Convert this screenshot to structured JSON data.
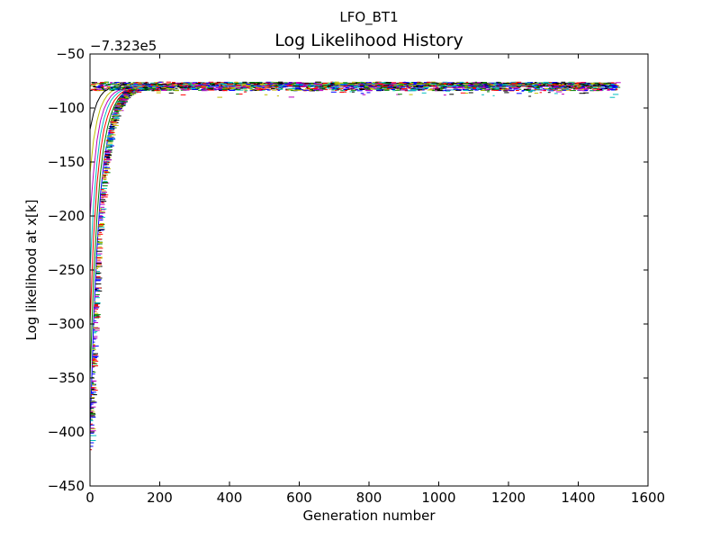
{
  "chart_data": {
    "type": "line",
    "suptitle": "LFO_BT1",
    "title": "Log Likelihood History",
    "xlabel": "Generation number",
    "ylabel": "Log likelihood at x[k]",
    "y_offset_label": "−7.323e5",
    "xlim": [
      0,
      1600
    ],
    "ylim": [
      -450,
      -50
    ],
    "xticks": [
      0,
      200,
      400,
      600,
      800,
      1000,
      1200,
      1400,
      1600
    ],
    "xtick_labels": [
      "0",
      "200",
      "400",
      "600",
      "800",
      "1000",
      "1200",
      "1400",
      "1600"
    ],
    "yticks": [
      -450,
      -400,
      -350,
      -300,
      -250,
      -200,
      -150,
      -100,
      -50
    ],
    "ytick_labels": [
      "−450",
      "−400",
      "−350",
      "−300",
      "−250",
      "−200",
      "−150",
      "−100",
      "−50"
    ],
    "grid": false,
    "x_max_data": 1510,
    "plateau_approx": -80,
    "series_colors": [
      "#0000ff",
      "#008000",
      "#ff0000",
      "#00bfbf",
      "#bf00bf",
      "#bfbf00",
      "#000000"
    ],
    "series": [
      {
        "x": [
          0,
          10,
          20,
          30,
          40,
          50,
          60,
          70,
          80,
          90,
          100,
          120,
          140,
          160,
          180,
          200,
          250,
          300,
          400,
          600,
          800,
          1000,
          1200,
          1400,
          1510
        ],
        "y": [
          -402,
          -300,
          -230,
          -180,
          -150,
          -130,
          -115,
          -105,
          -98,
          -93,
          -90,
          -86,
          -84,
          -83,
          -82,
          -81,
          -80,
          -80,
          -80,
          -80,
          -80,
          -80,
          -80,
          -80,
          -80
        ]
      },
      {
        "x": [
          0,
          10,
          20,
          30,
          40,
          50,
          60,
          70,
          80,
          90,
          100,
          120,
          140,
          160,
          180,
          200,
          250,
          300,
          400,
          600,
          800,
          1000,
          1200,
          1400,
          1510
        ],
        "y": [
          -350,
          -260,
          -200,
          -160,
          -135,
          -118,
          -106,
          -98,
          -92,
          -88,
          -86,
          -84,
          -83,
          -82,
          -81,
          -80,
          -79,
          -79,
          -79,
          -79,
          -79,
          -79,
          -79,
          -79,
          -79
        ]
      },
      {
        "x": [
          0,
          10,
          20,
          30,
          40,
          50,
          60,
          70,
          80,
          90,
          100,
          120,
          140,
          160,
          180,
          200,
          250,
          300,
          400,
          600,
          800,
          1000,
          1200,
          1400,
          1510
        ],
        "y": [
          -300,
          -220,
          -170,
          -140,
          -120,
          -108,
          -99,
          -93,
          -89,
          -86,
          -84,
          -82,
          -81,
          -81,
          -80,
          -80,
          -79,
          -79,
          -79,
          -79,
          -79,
          -79,
          -79,
          -79,
          -79
        ]
      },
      {
        "x": [
          0,
          10,
          20,
          30,
          40,
          50,
          60,
          70,
          80,
          90,
          100,
          120,
          140,
          160,
          180,
          200,
          250,
          300,
          400,
          600,
          800,
          1000,
          1200,
          1400,
          1510
        ],
        "y": [
          -250,
          -190,
          -150,
          -125,
          -110,
          -100,
          -93,
          -89,
          -86,
          -84,
          -83,
          -82,
          -81,
          -80,
          -80,
          -79,
          -79,
          -79,
          -79,
          -79,
          -79,
          -79,
          -79,
          -79,
          -79
        ]
      },
      {
        "x": [
          0,
          10,
          20,
          30,
          40,
          50,
          60,
          70,
          80,
          90,
          100,
          120,
          140,
          160,
          180,
          200,
          250,
          300,
          400,
          600,
          800,
          1000,
          1200,
          1400,
          1510
        ],
        "y": [
          -200,
          -160,
          -130,
          -112,
          -101,
          -94,
          -89,
          -86,
          -84,
          -83,
          -82,
          -81,
          -80,
          -80,
          -79,
          -79,
          -78,
          -78,
          -78,
          -78,
          -78,
          -78,
          -78,
          -78,
          -78
        ]
      },
      {
        "x": [
          0,
          10,
          20,
          30,
          40,
          50,
          60,
          70,
          80,
          90,
          100,
          120,
          140,
          160,
          180,
          200,
          250,
          300,
          400,
          600,
          800,
          1000,
          1200,
          1400,
          1510
        ],
        "y": [
          -160,
          -130,
          -112,
          -100,
          -93,
          -88,
          -85,
          -83,
          -82,
          -81,
          -80,
          -80,
          -79,
          -79,
          -78,
          -78,
          -78,
          -78,
          -78,
          -78,
          -78,
          -78,
          -78,
          -78,
          -78
        ]
      },
      {
        "x": [
          0,
          10,
          20,
          30,
          40,
          50,
          60,
          70,
          80,
          90,
          100,
          120,
          140,
          160,
          180,
          200,
          250,
          300,
          400,
          600,
          800,
          1000,
          1200,
          1400,
          1510
        ],
        "y": [
          -120,
          -105,
          -95,
          -89,
          -85,
          -83,
          -81,
          -80,
          -80,
          -79,
          -79,
          -78,
          -78,
          -78,
          -78,
          -78,
          -77,
          -77,
          -77,
          -77,
          -77,
          -77,
          -77,
          -77,
          -77
        ]
      }
    ]
  }
}
